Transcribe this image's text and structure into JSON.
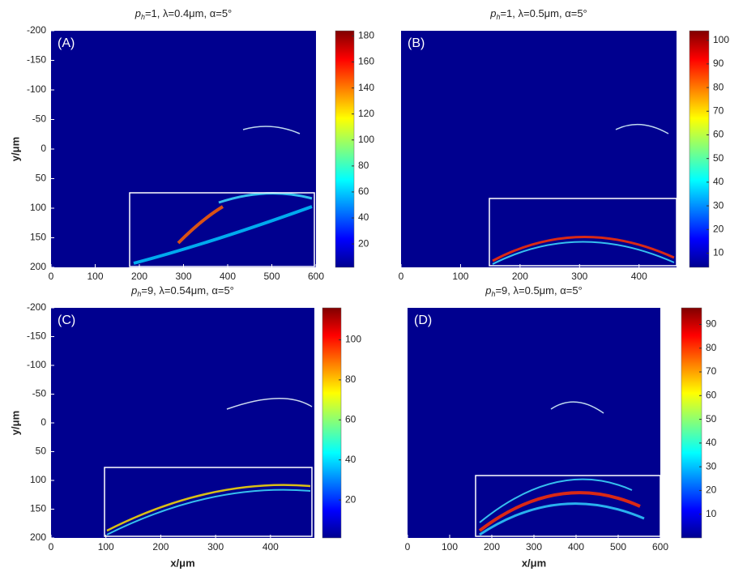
{
  "chart_data": [
    {
      "type": "heatmap",
      "title": {
        "p": "p",
        "sub": "h",
        "rest": "=1, λ=0.4μm, α=5°"
      },
      "panel_label": "(A)",
      "ylabel": "y/μm",
      "xlim": [
        0,
        600
      ],
      "xticks": [
        0,
        100,
        200,
        300,
        400,
        500,
        600
      ],
      "ylim": [
        -200,
        200
      ],
      "yreverse": true,
      "yticks": [
        -200,
        -150,
        -100,
        -50,
        0,
        50,
        100,
        150,
        200
      ],
      "colorbar": {
        "clim": [
          2,
          184
        ],
        "ticks": [
          20,
          40,
          60,
          80,
          100,
          120,
          140,
          160,
          180
        ]
      }
    },
    {
      "type": "heatmap",
      "title": {
        "p": "p",
        "sub": "h",
        "rest": "=1, λ=0.5μm, α=5°"
      },
      "panel_label": "(B)",
      "xlim": [
        0,
        463
      ],
      "xticks": [
        0,
        100,
        200,
        300,
        400
      ],
      "ylim": [
        -200,
        200
      ],
      "yreverse": true,
      "colorbar": {
        "clim": [
          4,
          104
        ],
        "ticks": [
          10,
          20,
          30,
          40,
          50,
          60,
          70,
          80,
          90,
          100
        ]
      }
    },
    {
      "type": "heatmap",
      "title": {
        "p": "p",
        "sub": "h",
        "rest": "=9, λ=0.54μm, α=5°"
      },
      "panel_label": "(C)",
      "ylabel": "y/μm",
      "xlabel": "x/μm",
      "xlim": [
        0,
        480
      ],
      "xticks": [
        0,
        100,
        200,
        300,
        400
      ],
      "ylim": [
        -200,
        200
      ],
      "yreverse": true,
      "yticks": [
        -200,
        -150,
        -100,
        -50,
        0,
        50,
        100,
        150,
        200
      ],
      "colorbar": {
        "clim": [
          1,
          116
        ],
        "ticks": [
          20,
          40,
          60,
          80,
          100
        ]
      }
    },
    {
      "type": "heatmap",
      "title": {
        "p": "p",
        "sub": "h",
        "rest": "=9, λ=0.5μm, α=5°"
      },
      "panel_label": "(D)",
      "xlabel": "x/μm",
      "xlim": [
        0,
        600
      ],
      "xticks": [
        0,
        100,
        200,
        300,
        400,
        500,
        600
      ],
      "ylim": [
        -200,
        200
      ],
      "yreverse": true,
      "colorbar": {
        "clim": [
          0,
          97
        ],
        "ticks": [
          10,
          20,
          30,
          40,
          50,
          60,
          70,
          80,
          90
        ]
      }
    }
  ]
}
